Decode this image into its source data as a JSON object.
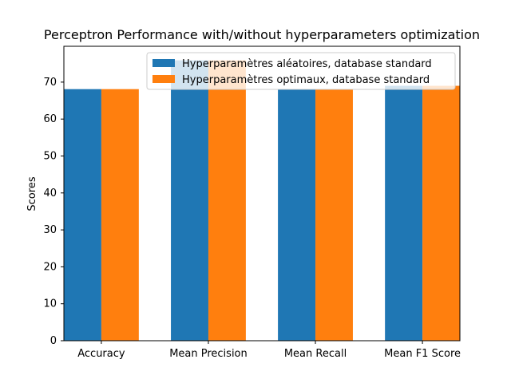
{
  "chart_data": {
    "type": "bar",
    "title": "Perceptron Performance with/without hyperparameters optimization",
    "xlabel": "",
    "ylabel": "Scores",
    "categories": [
      "Accuracy",
      "Mean Precision",
      "Mean Recall",
      "Mean F1 Score"
    ],
    "series": [
      {
        "name": "Hyperparamètres aléatoires, database standard",
        "color": "#1f77b4",
        "values": [
          68.1,
          75.9,
          68.1,
          69.0
        ]
      },
      {
        "name": "Hyperparamètres optimaux, database standard",
        "color": "#ff7f0e",
        "values": [
          68.1,
          75.9,
          68.1,
          69.0
        ]
      }
    ],
    "ylim": [
      0,
      79.7
    ],
    "yticks": [
      0,
      10,
      20,
      30,
      40,
      50,
      60,
      70
    ],
    "grid": false,
    "legend_position": "top-right"
  }
}
